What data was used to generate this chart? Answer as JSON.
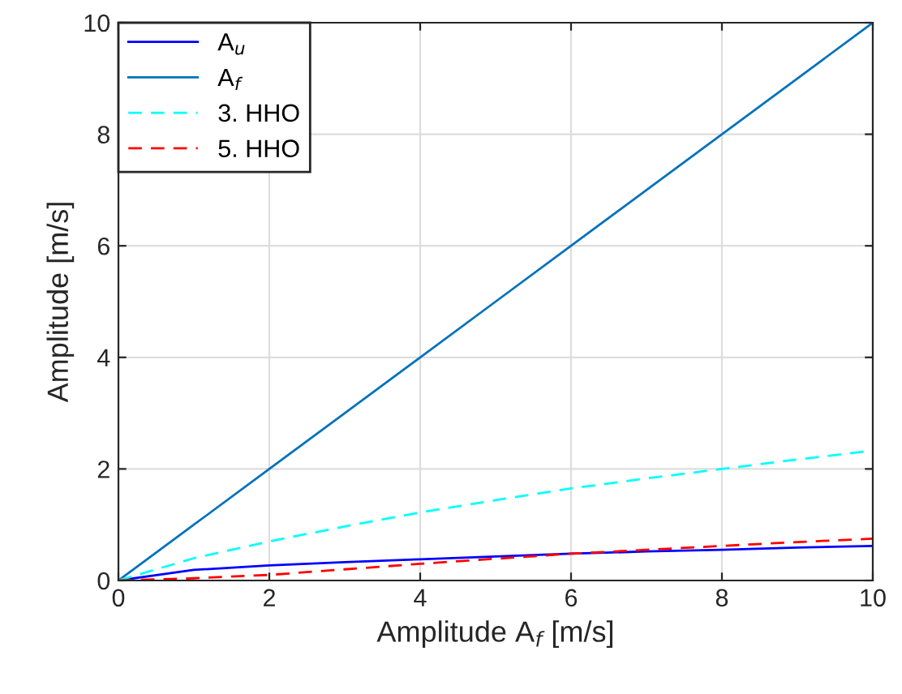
{
  "chart_data": {
    "type": "line",
    "xlabel": "Amplitude A$_{f}$ [m/s]",
    "ylabel": "Amplitude [m/s]",
    "x": [
      0,
      1,
      2,
      3,
      4,
      5,
      6,
      7,
      8,
      9,
      10
    ],
    "series": [
      {
        "name": "A$_{u}$",
        "color": "#0000ff",
        "line_style": "solid",
        "values": [
          0,
          0.19,
          0.27,
          0.33,
          0.38,
          0.43,
          0.48,
          0.52,
          0.55,
          0.59,
          0.62
        ]
      },
      {
        "name": "A$_{f}$",
        "color": "#0072bd",
        "line_style": "solid",
        "values": [
          0,
          1,
          2,
          3,
          4,
          5,
          6,
          7,
          8,
          9,
          10
        ]
      },
      {
        "name": "3. HHO",
        "color": "#00ffff",
        "line_style": "dashed",
        "values": [
          0,
          0.4,
          0.7,
          0.97,
          1.22,
          1.44,
          1.65,
          1.83,
          2.0,
          2.17,
          2.33
        ]
      },
      {
        "name": "5. HHO",
        "color": "#ff0000",
        "line_style": "dashed",
        "values": [
          0,
          0.04,
          0.1,
          0.2,
          0.3,
          0.39,
          0.48,
          0.55,
          0.62,
          0.69,
          0.75
        ]
      }
    ],
    "xlim": [
      0,
      10
    ],
    "ylim": [
      0,
      10
    ],
    "xticks": [
      0,
      2,
      4,
      6,
      8,
      10
    ],
    "yticks": [
      0,
      2,
      4,
      6,
      8,
      10
    ],
    "grid": true,
    "legend": "top left",
    "marker": "none"
  }
}
